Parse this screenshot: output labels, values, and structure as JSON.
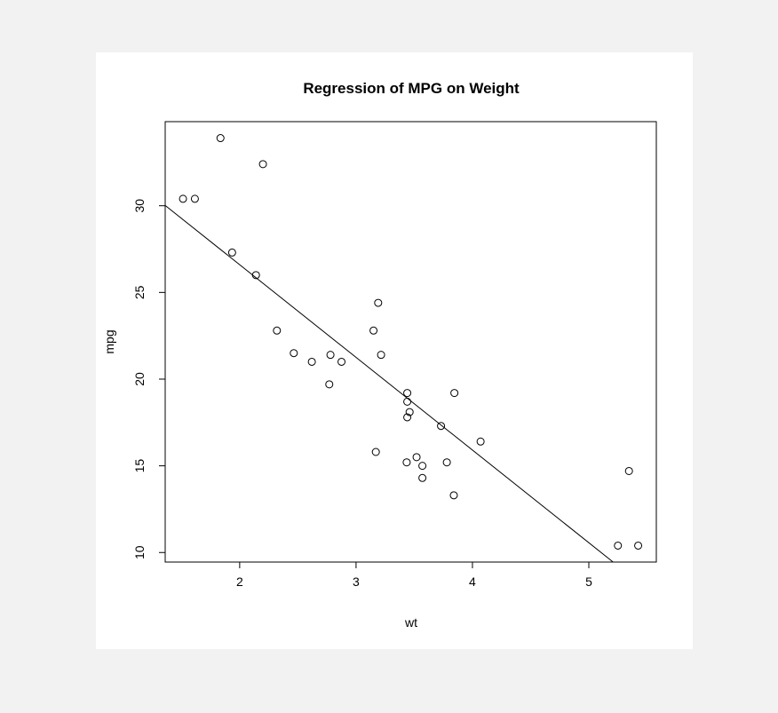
{
  "chart_data": {
    "type": "scatter",
    "title": "Regression of MPG on Weight",
    "xlabel": "wt",
    "ylabel": "mpg",
    "xlim": [
      1.36,
      5.58
    ],
    "ylim": [
      9.45,
      34.85
    ],
    "x_ticks": [
      "2",
      "3",
      "4",
      "5"
    ],
    "y_ticks": [
      "10",
      "15",
      "20",
      "25",
      "30"
    ],
    "x_tick_values": [
      2,
      3,
      4,
      5
    ],
    "y_tick_values": [
      10,
      15,
      20,
      25,
      30
    ],
    "grid": false,
    "series": [
      {
        "marker": "open-circle",
        "x": [
          2.62,
          2.875,
          2.32,
          3.215,
          3.44,
          3.46,
          3.57,
          3.19,
          3.15,
          3.44,
          3.44,
          4.07,
          3.73,
          3.78,
          5.25,
          5.424,
          5.345,
          2.2,
          1.615,
          1.835,
          2.465,
          3.52,
          3.435,
          3.84,
          3.845,
          1.935,
          2.14,
          1.513,
          3.17,
          2.77,
          3.57,
          2.78
        ],
        "y": [
          21.0,
          21.0,
          22.8,
          21.4,
          18.7,
          18.1,
          14.3,
          24.4,
          22.8,
          19.2,
          17.8,
          16.4,
          17.3,
          15.2,
          10.4,
          10.4,
          14.7,
          32.4,
          30.4,
          33.9,
          21.5,
          15.5,
          15.2,
          13.3,
          19.2,
          27.3,
          26.0,
          30.4,
          15.8,
          19.7,
          15.0,
          21.4
        ]
      }
    ],
    "regression_line": {
      "intercept": 37.285,
      "slope": -5.344
    }
  }
}
